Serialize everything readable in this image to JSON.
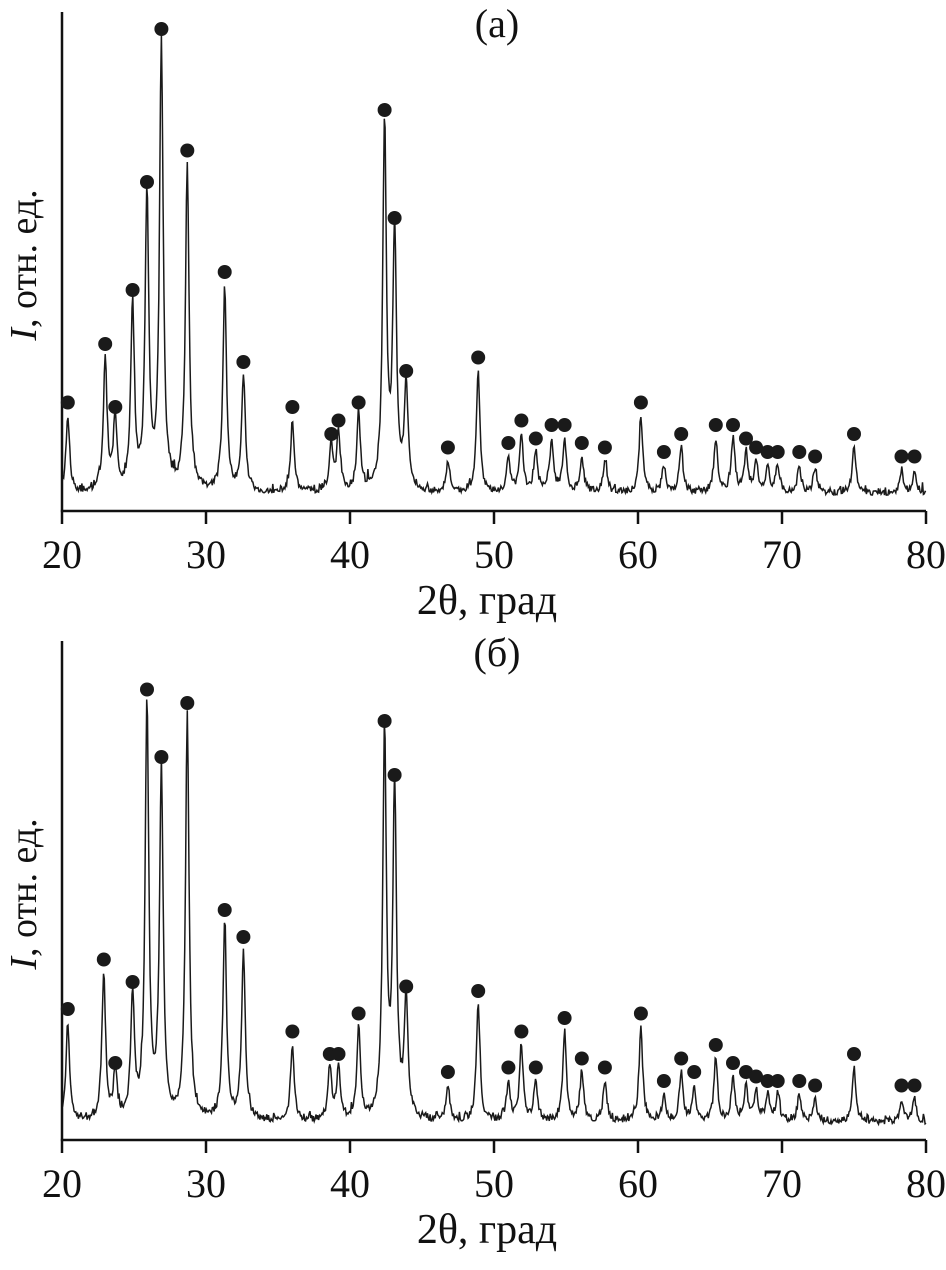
{
  "chart_data": [
    {
      "type": "line",
      "title": "(а)",
      "xlabel": "2θ, град",
      "ylabel": "I, отн. ед.",
      "ylabel_em": "I",
      "ylabel_rest": ", отн. ед.",
      "xlim": [
        20,
        80
      ],
      "ylim": [
        0,
        1.05
      ],
      "x_ticks": [
        20,
        30,
        40,
        50,
        60,
        70,
        80
      ],
      "y_ticks": [],
      "grid": false,
      "line_color": "#1a1a1a",
      "peak_marker": "filled-circle",
      "peaks_columns": [
        "two_theta_deg",
        "relative_intensity"
      ],
      "peaks": [
        [
          20.4,
          0.17
        ],
        [
          23.0,
          0.3
        ],
        [
          23.7,
          0.16
        ],
        [
          24.9,
          0.42
        ],
        [
          25.9,
          0.66
        ],
        [
          26.9,
          1.0
        ],
        [
          28.7,
          0.73
        ],
        [
          31.3,
          0.46
        ],
        [
          32.6,
          0.26
        ],
        [
          36.0,
          0.16
        ],
        [
          38.7,
          0.1
        ],
        [
          39.2,
          0.13
        ],
        [
          40.6,
          0.17
        ],
        [
          42.4,
          0.82
        ],
        [
          43.1,
          0.58
        ],
        [
          43.9,
          0.24
        ],
        [
          46.8,
          0.07
        ],
        [
          48.9,
          0.27
        ],
        [
          51.0,
          0.08
        ],
        [
          51.9,
          0.13
        ],
        [
          52.9,
          0.09
        ],
        [
          54.0,
          0.12
        ],
        [
          54.9,
          0.12
        ],
        [
          56.1,
          0.08
        ],
        [
          57.7,
          0.07
        ],
        [
          60.2,
          0.17
        ],
        [
          61.8,
          0.06
        ],
        [
          63.0,
          0.1
        ],
        [
          65.4,
          0.12
        ],
        [
          66.6,
          0.12
        ],
        [
          67.5,
          0.09
        ],
        [
          68.2,
          0.07
        ],
        [
          69.0,
          0.06
        ],
        [
          69.7,
          0.06
        ],
        [
          71.2,
          0.06
        ],
        [
          72.3,
          0.05
        ],
        [
          75.0,
          0.1
        ],
        [
          78.3,
          0.05
        ],
        [
          79.2,
          0.05
        ]
      ]
    },
    {
      "type": "line",
      "title": "(б)",
      "xlabel": "2θ, град",
      "ylabel": "I, отн. ед.",
      "ylabel_em": "I",
      "ylabel_rest": ", отн. ед.",
      "xlim": [
        20,
        80
      ],
      "ylim": [
        0,
        1.05
      ],
      "x_ticks": [
        20,
        30,
        40,
        50,
        60,
        70,
        80
      ],
      "y_ticks": [],
      "grid": false,
      "line_color": "#1a1a1a",
      "peak_marker": "filled-circle",
      "peaks_columns": [
        "two_theta_deg",
        "relative_intensity"
      ],
      "peaks": [
        [
          20.4,
          0.22
        ],
        [
          22.9,
          0.33
        ],
        [
          23.7,
          0.1
        ],
        [
          24.9,
          0.28
        ],
        [
          25.9,
          0.93
        ],
        [
          26.9,
          0.78
        ],
        [
          28.7,
          0.9
        ],
        [
          31.3,
          0.44
        ],
        [
          32.6,
          0.38
        ],
        [
          36.0,
          0.17
        ],
        [
          38.6,
          0.12
        ],
        [
          39.2,
          0.12
        ],
        [
          40.6,
          0.21
        ],
        [
          42.4,
          0.86
        ],
        [
          43.1,
          0.74
        ],
        [
          43.9,
          0.27
        ],
        [
          46.8,
          0.08
        ],
        [
          48.9,
          0.26
        ],
        [
          51.0,
          0.09
        ],
        [
          51.9,
          0.17
        ],
        [
          52.9,
          0.09
        ],
        [
          54.9,
          0.2
        ],
        [
          56.1,
          0.11
        ],
        [
          57.7,
          0.09
        ],
        [
          60.2,
          0.21
        ],
        [
          61.8,
          0.06
        ],
        [
          63.0,
          0.11
        ],
        [
          63.9,
          0.08
        ],
        [
          65.4,
          0.14
        ],
        [
          66.6,
          0.1
        ],
        [
          67.5,
          0.08
        ],
        [
          68.2,
          0.07
        ],
        [
          69.0,
          0.06
        ],
        [
          69.7,
          0.06
        ],
        [
          71.2,
          0.06
        ],
        [
          72.3,
          0.05
        ],
        [
          75.0,
          0.12
        ],
        [
          78.3,
          0.05
        ],
        [
          79.2,
          0.05
        ]
      ]
    }
  ]
}
